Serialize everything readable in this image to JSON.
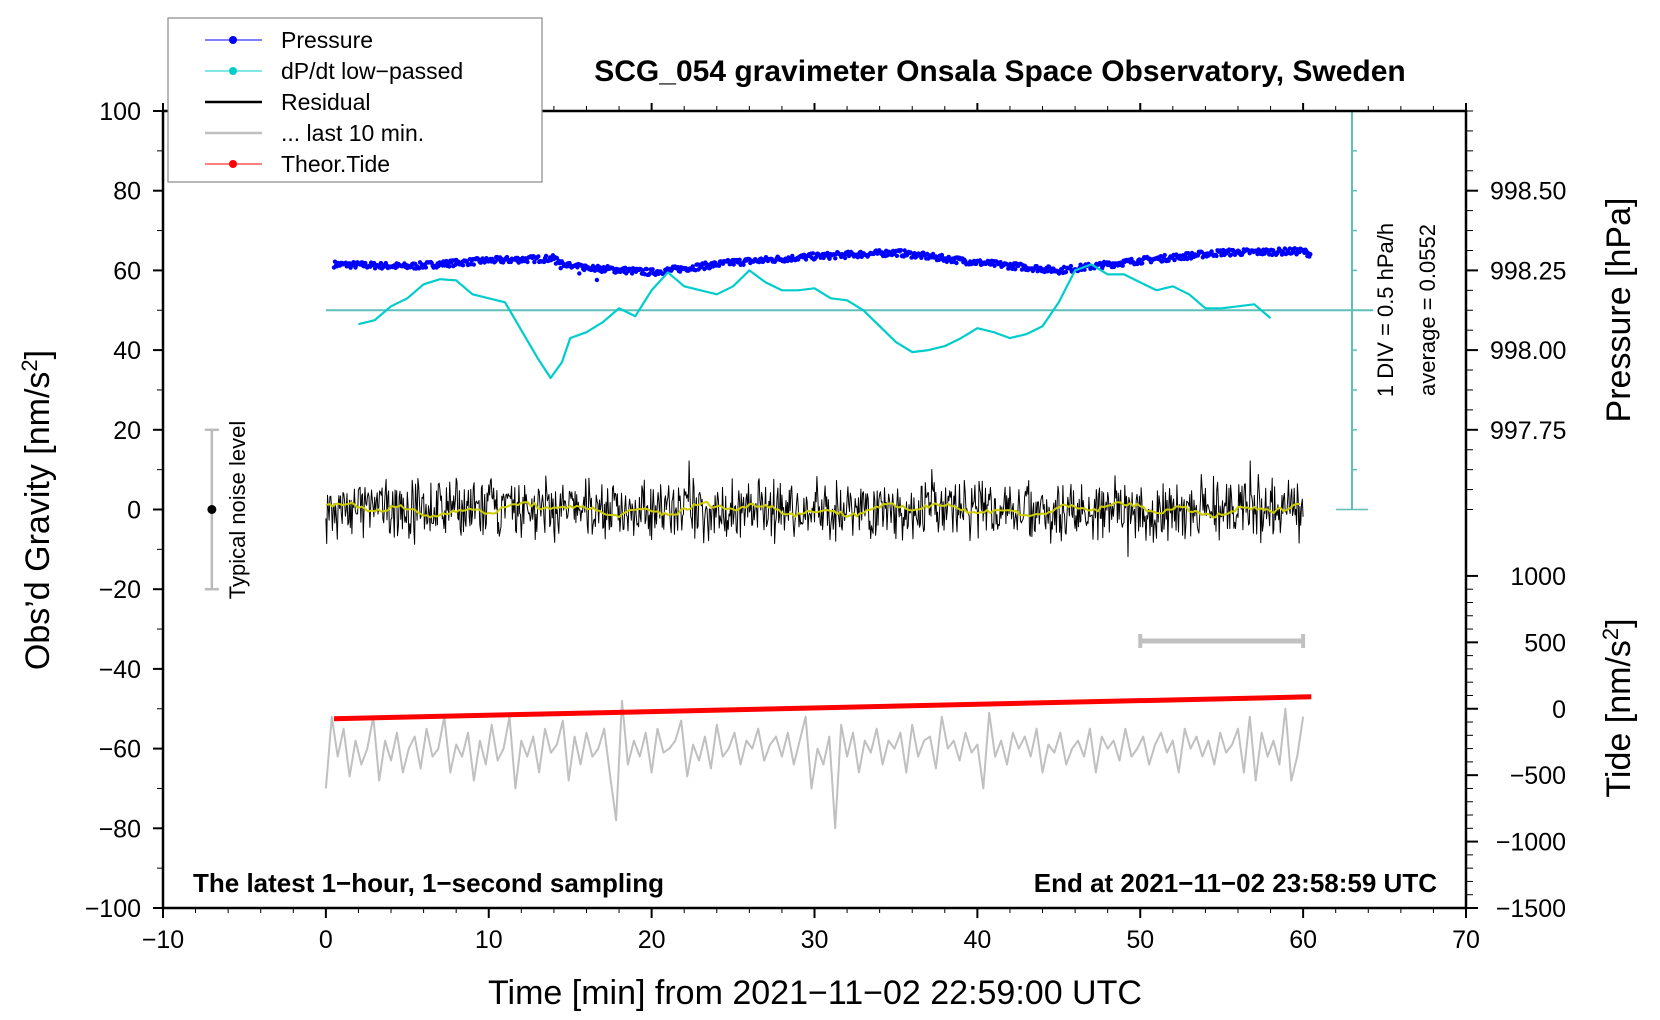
{
  "chart_data": {
    "type": "line",
    "title": "SCG_054 gravimeter Onsala Space Observatory, Sweden",
    "xlabel": "Time [min] from 2021−11−02 22:59:00 UTC",
    "ylabel_left": "Obs’d Gravity [nm/s2]",
    "ylabel_left_main": "Obs’d Gravity [nm/s",
    "ylabel_left_sup": "2",
    "ylabel_right_pressure": "Pressure [hPa]",
    "ylabel_right_tide_main": "Tide [nm/s",
    "ylabel_right_tide_sup": "2",
    "xlim": [
      -10,
      70
    ],
    "ylim": [
      -100,
      100
    ],
    "x_ticks": [
      "−10",
      "0",
      "10",
      "20",
      "30",
      "40",
      "50",
      "60",
      "70"
    ],
    "x_tick_values": [
      -10,
      0,
      10,
      20,
      30,
      40,
      50,
      60,
      70
    ],
    "y_ticks": [
      "100",
      "80",
      "60",
      "40",
      "20",
      "0",
      "−20",
      "−40",
      "−60",
      "−80",
      "−100"
    ],
    "y_tick_values": [
      100,
      80,
      60,
      40,
      20,
      0,
      -20,
      -40,
      -60,
      -80,
      -100
    ],
    "pressure_ticks": [
      "998.50",
      "998.25",
      "998.00",
      "997.75"
    ],
    "pressure_tick_values": [
      998.5,
      998.25,
      998.0,
      997.75
    ],
    "tide_ticks": [
      "1000",
      "500",
      "0",
      "−500",
      "−1000",
      "−1500"
    ],
    "tide_tick_values": [
      1000,
      500,
      0,
      -500,
      -1000,
      -1500
    ],
    "legend": {
      "placement": "top-left",
      "entries": [
        {
          "label": "Pressure",
          "color": "#0000ff",
          "marker": true
        },
        {
          "label": "dP/dt low−passed",
          "color": "#00cccc",
          "marker": true
        },
        {
          "label": "Residual",
          "color": "#000000",
          "marker": false
        },
        {
          "label": "... last 10 min.",
          "color": "#c0c0c0",
          "marker": false
        },
        {
          "label": "Theor.Tide",
          "color": "#ff0000",
          "marker": true
        }
      ]
    },
    "annotations": {
      "noise_label": "Typical noise level",
      "div_label": "1 DIV = 0.5 hPa/h",
      "average_label": "average = 0.0552",
      "bottom_left": "The latest 1−hour, 1−second sampling",
      "bottom_right": "End at 2021−11−02 23:58:59 UTC"
    },
    "series": [
      {
        "name": "Pressure",
        "unit": "hPa",
        "color": "#0000ff",
        "x": [
          0.5,
          5,
          10,
          14,
          15,
          20,
          25,
          30,
          35,
          40,
          45,
          50,
          55,
          60,
          60.5
        ],
        "y": [
          998.269,
          998.2625,
          998.281,
          998.2875,
          998.2625,
          998.244,
          998.275,
          998.294,
          998.306,
          998.275,
          998.25,
          998.281,
          998.306,
          998.31,
          998.3
        ]
      },
      {
        "name": "dP/dt low-passed",
        "unit": "gravity-axis units (1 DIV = 10)",
        "color": "#00cccc",
        "x": [
          2,
          3,
          4,
          5,
          6,
          7,
          8,
          9,
          10,
          11,
          12,
          13,
          13.8,
          14.5,
          15,
          16,
          17,
          18,
          19,
          20,
          21,
          22,
          23,
          24,
          25,
          26,
          27,
          28,
          29,
          30,
          31,
          32,
          33,
          34,
          35,
          36,
          37,
          38,
          39,
          40,
          41,
          42,
          43,
          44,
          45,
          46,
          47,
          48,
          49,
          50,
          51,
          52,
          53,
          54,
          55,
          56,
          57,
          58
        ],
        "y": [
          46.5,
          47.5,
          51,
          53,
          56.5,
          57.8,
          57.5,
          54,
          53,
          52,
          45,
          38,
          33,
          37,
          43,
          44.5,
          47,
          50.5,
          48.5,
          55,
          59.5,
          56,
          55,
          54,
          56,
          60,
          57,
          55,
          55,
          55.5,
          53,
          52.5,
          50,
          46,
          42,
          39.5,
          40,
          41,
          43,
          45.5,
          44.5,
          43,
          44,
          46,
          52,
          60,
          61.5,
          59,
          59,
          57,
          55,
          56,
          54,
          50.5,
          50.5,
          51,
          51.5,
          48
        ]
      },
      {
        "name": "Residual",
        "unit": "nm/s2",
        "color": "#000000",
        "mean_line_color": "#cccc00",
        "x_range": [
          0,
          60
        ],
        "typical_amplitude": 8,
        "extremes": [
          15,
          -17
        ]
      },
      {
        "name": "... last 10 min.",
        "unit": "gravity-axis units",
        "color": "#c0c0c0",
        "x_range": [
          0,
          60
        ],
        "y": [
          -70,
          -52,
          -62,
          -55,
          -67,
          -58,
          -64,
          -60,
          -52,
          -68,
          -58,
          -63,
          -56,
          -66,
          -60,
          -57,
          -65,
          -55,
          -62,
          -60,
          -52,
          -66,
          -59,
          -62,
          -56,
          -68,
          -58,
          -64,
          -54,
          -63,
          -60,
          -52,
          -70,
          -58,
          -62,
          -57,
          -66,
          -55,
          -61,
          -59,
          -53,
          -68,
          -57,
          -64,
          -56,
          -62,
          -60,
          -55,
          -67,
          -78,
          -48,
          -64,
          -58,
          -62,
          -56,
          -66,
          -55,
          -61,
          -60,
          -58,
          -53,
          -67,
          -59,
          -63,
          -57,
          -65,
          -54,
          -62,
          -60,
          -56,
          -64,
          -58,
          -60,
          -55,
          -63,
          -59,
          -57,
          -62,
          -56,
          -64,
          -58,
          -52,
          -70,
          -60,
          -64,
          -57,
          -80,
          -54,
          -62,
          -56,
          -66,
          -58,
          -61,
          -55,
          -64,
          -58,
          -60,
          -56,
          -66,
          -54,
          -62,
          -58,
          -57,
          -65,
          -52,
          -60,
          -58,
          -63,
          -56,
          -61,
          -59,
          -70,
          -51,
          -62,
          -58,
          -64,
          -56,
          -60,
          -57,
          -62,
          -55,
          -66,
          -59,
          -61,
          -56,
          -64,
          -60,
          -58,
          -62,
          -55,
          -66,
          -57,
          -60,
          -58,
          -63,
          -55,
          -62,
          -60,
          -57,
          -64,
          -59,
          -56,
          -61,
          -58,
          -66,
          -55,
          -60,
          -57,
          -62,
          -58,
          -64,
          -56,
          -61,
          -59,
          -55,
          -66,
          -52,
          -68,
          -56,
          -62,
          -58,
          -64,
          -50,
          -68,
          -62,
          -52
        ]
      },
      {
        "name": "Theor.Tide",
        "unit": "nm/s2",
        "color": "#ff0000",
        "x": [
          0.5,
          60.5
        ],
        "y": [
          -75,
          90
        ]
      }
    ],
    "noise_bar": {
      "x": -7,
      "low": -20,
      "high": 20,
      "center": 0
    },
    "ten_min_bar": {
      "from": 50,
      "to": 60,
      "level": -33
    },
    "dpdt_scale": {
      "x": 63,
      "from": 0,
      "to": 100,
      "div": 10,
      "baseline": 50
    }
  }
}
